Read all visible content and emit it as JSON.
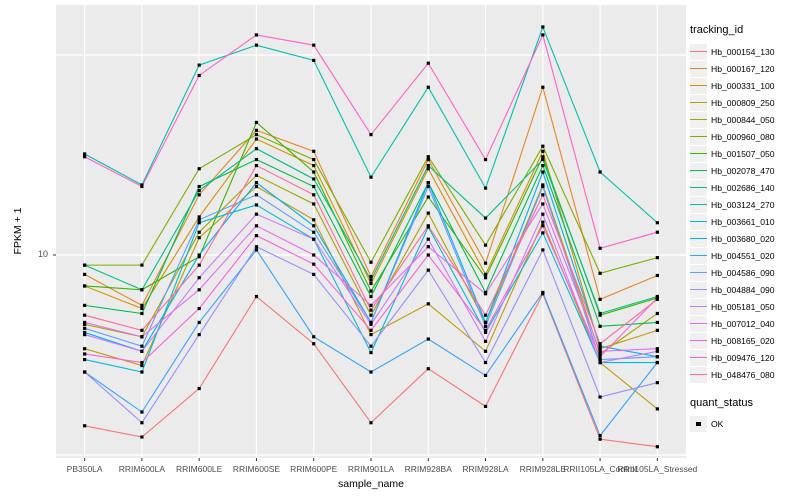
{
  "figure": {
    "ylabel": "FPKM + 1",
    "xlabel": "sample_name",
    "y_tick_label": "10",
    "legend_title": "tracking_id",
    "quant_legend_title": "quant_status",
    "quant_legend_item": "OK"
  },
  "colors": {
    "panel_bg": "#ebebeb",
    "grid": "#ffffff",
    "axis_text": "#4d4d4d",
    "marker": "#000000",
    "legend_key_bg": "#f0f0f0"
  },
  "chart_data": {
    "type": "line",
    "title": "",
    "xlabel": "sample_name",
    "ylabel": "FPKM + 1",
    "yscale": "log10",
    "ylim": [
      1,
      180
    ],
    "grid": true,
    "legend_position": "right",
    "marker": "black-square",
    "y_gridline_values": [
      1,
      10,
      100
    ],
    "y_labeled_tick": 10,
    "x_categories": [
      "PB350LA",
      "RRIM600LA",
      "RRIM600LE",
      "RRIM600SE",
      "RRIM600PE",
      "RRIM901LA",
      "RRIM928BA",
      "RRIM928LA",
      "RRIM928LE",
      "RRII105LA_Control",
      "RRII105LA_Stressed"
    ],
    "series": [
      {
        "name": "Hb_000154_130",
        "color": "#F8766D",
        "values": [
          1.4,
          1.23,
          2.15,
          6.2,
          3.6,
          1.45,
          2.7,
          1.75,
          6.4,
          1.2,
          1.1
        ]
      },
      {
        "name": "Hb_000167_120",
        "color": "#E88526",
        "values": [
          8.0,
          5.6,
          20,
          42,
          33,
          7.8,
          30,
          9.1,
          69,
          6.0,
          7.9
        ]
      },
      {
        "name": "Hb_000331_100",
        "color": "#D39200",
        "values": [
          7.0,
          5.4,
          15.5,
          38,
          28,
          7.2,
          27,
          8.0,
          33,
          3.4,
          4.2
        ]
      },
      {
        "name": "Hb_000809_250",
        "color": "#C09B00",
        "values": [
          3.4,
          2.8,
          12.2,
          22,
          15,
          4.0,
          5.7,
          3.3,
          14.6,
          2.9,
          1.7
        ]
      },
      {
        "name": "Hb_000844_050",
        "color": "#A3A500",
        "values": [
          4.5,
          3.9,
          13.0,
          25,
          18,
          5.0,
          16.2,
          4.6,
          22.4,
          3.2,
          5.1
        ]
      },
      {
        "name": "Hb_000960_080",
        "color": "#7CAE00",
        "values": [
          8.9,
          8.9,
          27,
          40,
          30,
          9.2,
          31,
          11.2,
          35,
          8.1,
          9.7
        ]
      },
      {
        "name": "Hb_001507_050",
        "color": "#39B600",
        "values": [
          7.0,
          6.7,
          9.8,
          46,
          26,
          6.6,
          19.5,
          7.7,
          31,
          5.0,
          6.1
        ]
      },
      {
        "name": "Hb_002078_470",
        "color": "#00BB4E",
        "values": [
          5.6,
          5.1,
          22,
          30,
          22,
          6.2,
          23,
          6.5,
          28,
          4.4,
          4.6
        ]
      },
      {
        "name": "Hb_002686_140",
        "color": "#00C087",
        "values": [
          8.9,
          6.7,
          21,
          34,
          24,
          7.5,
          28,
          15.3,
          30,
          5.1,
          6.2
        ]
      },
      {
        "name": "Hb_003124_270",
        "color": "#00C0AF",
        "values": [
          32,
          22.4,
          89,
          112,
          94,
          24.5,
          69,
          21.6,
          138,
          26,
          14.5
        ]
      },
      {
        "name": "Hb_003661_010",
        "color": "#00BCD8",
        "values": [
          3.0,
          2.6,
          14.5,
          17.8,
          12,
          3.25,
          13.8,
          4.1,
          12.9,
          2.9,
          2.9
        ]
      },
      {
        "name": "Hb_003680_020",
        "color": "#00B0F6",
        "values": [
          4.1,
          3.3,
          10.0,
          23,
          14,
          4.6,
          23,
          4.6,
          26,
          3.5,
          3.1
        ]
      },
      {
        "name": "Hb_004551_020",
        "color": "#35A2FF",
        "values": [
          2.6,
          1.64,
          4.6,
          10.6,
          3.9,
          2.6,
          3.8,
          2.5,
          6.5,
          1.25,
          2.9
        ]
      },
      {
        "name": "Hb_004586_090",
        "color": "#619CFF",
        "values": [
          4.3,
          3.5,
          15.0,
          20,
          13,
          4.6,
          22,
          4.4,
          22,
          3.0,
          3.1
        ]
      },
      {
        "name": "Hb_004884_090",
        "color": "#9590FF",
        "values": [
          2.6,
          1.45,
          4.0,
          11.0,
          8.0,
          3.5,
          8.4,
          2.9,
          10.6,
          1.95,
          2.3
        ]
      },
      {
        "name": "Hb_005181_050",
        "color": "#C77CFF",
        "values": [
          4.0,
          3.3,
          7.7,
          16,
          12,
          4.5,
          12,
          3.7,
          16,
          2.9,
          3.3
        ]
      },
      {
        "name": "Hb_007012_040",
        "color": "#E76BF3",
        "values": [
          4.6,
          3.9,
          6.7,
          14,
          10,
          5.6,
          11,
          6.4,
          18,
          3.3,
          3.4
        ]
      },
      {
        "name": "Hb_008165_020",
        "color": "#FA62DB",
        "values": [
          3.2,
          2.9,
          5.4,
          12.5,
          9.0,
          4.2,
          10,
          4.2,
          14,
          3.1,
          6.1
        ]
      },
      {
        "name": "Hb_009476_120",
        "color": "#FF61C9",
        "values": [
          31,
          22,
          79,
          126,
          112,
          40,
          91,
          30,
          126,
          10.8,
          13
        ]
      },
      {
        "name": "Hb_048476_080",
        "color": "#FF6A98",
        "values": [
          5.0,
          4.2,
          8.9,
          28,
          20,
          5.3,
          14,
          5.0,
          20,
          3.6,
          6.0
        ]
      }
    ],
    "quant_status": {
      "title": "quant_status",
      "items": [
        {
          "label": "OK",
          "marker": "black-square"
        }
      ]
    }
  }
}
